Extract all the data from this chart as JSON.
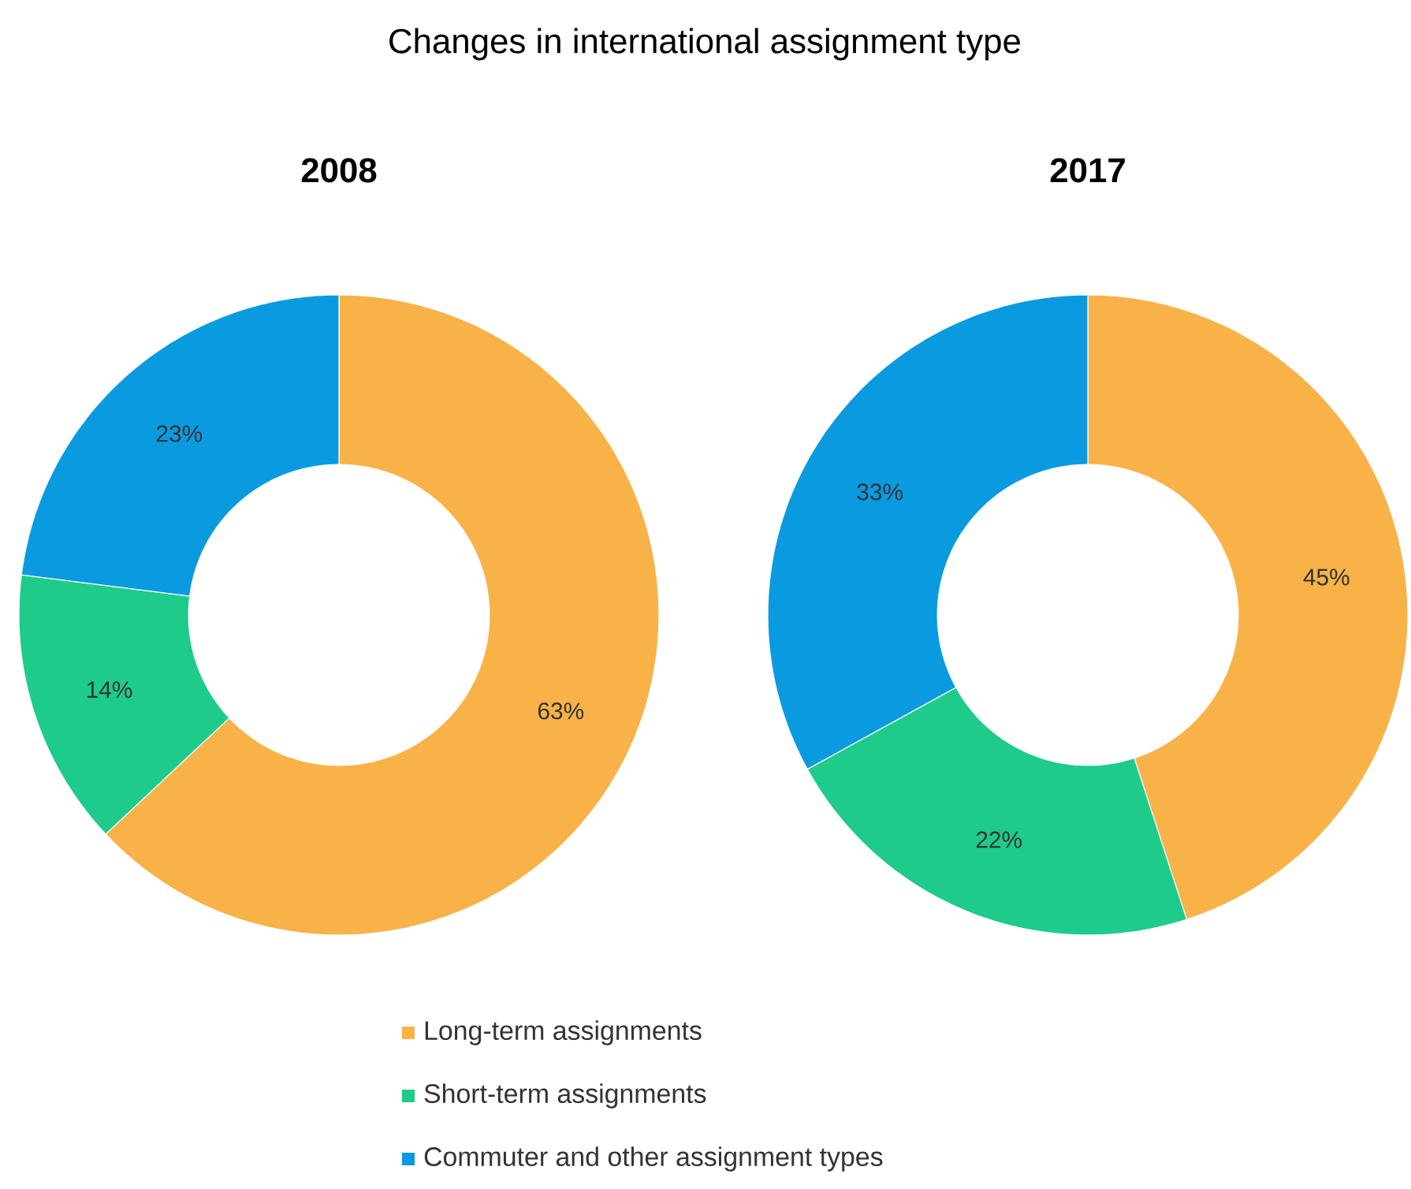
{
  "chart_data": [
    {
      "type": "donut",
      "title": "Changes in international assignment type",
      "subtitle": "2008",
      "categories": [
        "Long-term assignments",
        "Short-term assignments",
        "Commuter and other assignment types"
      ],
      "values": [
        63,
        14,
        23
      ],
      "colors": [
        "#f9b248",
        "#1ecb8a",
        "#0a9ae0"
      ],
      "value_labels": [
        "63%",
        "14%",
        "23%"
      ],
      "legend": "bottom"
    },
    {
      "type": "donut",
      "title": "2017",
      "categories": [
        null,
        null,
        null
      ],
      "values": [
        45,
        22,
        33
      ],
      "colors": [
        "#f9b248",
        "#1ecb8a",
        "#0a9ae0"
      ],
      "value_labels": [
        "45%",
        "22%",
        "33%"
      ]
    }
  ]
}
